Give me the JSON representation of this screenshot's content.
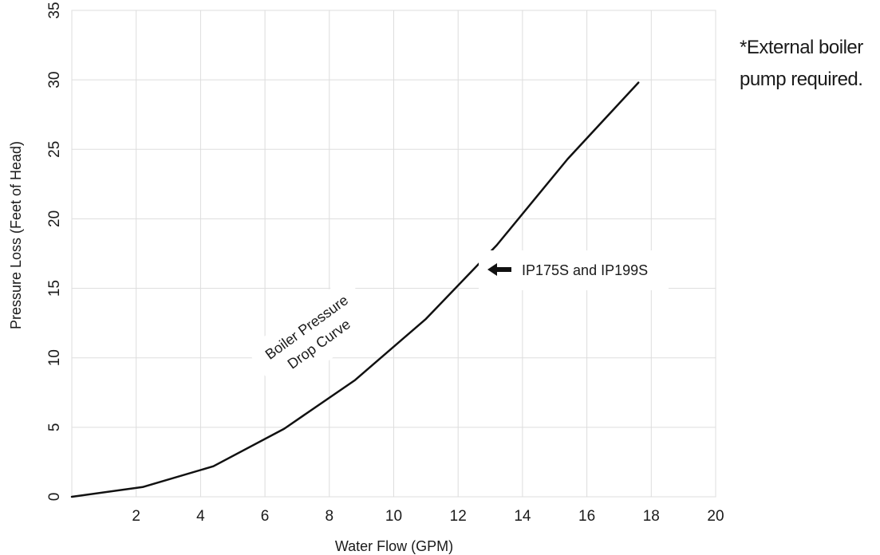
{
  "chart_data": {
    "type": "line",
    "xlabel": "Water Flow (GPM)",
    "ylabel": "Pressure Loss (Feet of Head)",
    "xlim": [
      0,
      20
    ],
    "ylim": [
      0,
      35
    ],
    "x_ticks": [
      "2",
      "4",
      "6",
      "8",
      "10",
      "12",
      "14",
      "16",
      "18",
      "20"
    ],
    "y_ticks": [
      "0",
      "5",
      "10",
      "15",
      "20",
      "25",
      "30",
      "35"
    ],
    "grid": true,
    "series": [
      {
        "name": "",
        "x": [
          0,
          2.2,
          4.4,
          6.6,
          8.8,
          11.0,
          13.2,
          15.4,
          17.6
        ],
        "y": [
          0,
          0.7,
          2.2,
          4.9,
          8.4,
          12.8,
          18.1,
          24.3,
          29.8
        ]
      }
    ],
    "annotations": {
      "curve_label_line1": "Boiler Pressure",
      "curve_label_line2": "Drop Curve",
      "model_label": "IP175S and IP199S"
    }
  },
  "note": {
    "line1": "*External boiler",
    "line2": "pump required."
  },
  "colors": {
    "line": "#111111",
    "grid": "#dddddd",
    "text": "#1a1a1a"
  }
}
